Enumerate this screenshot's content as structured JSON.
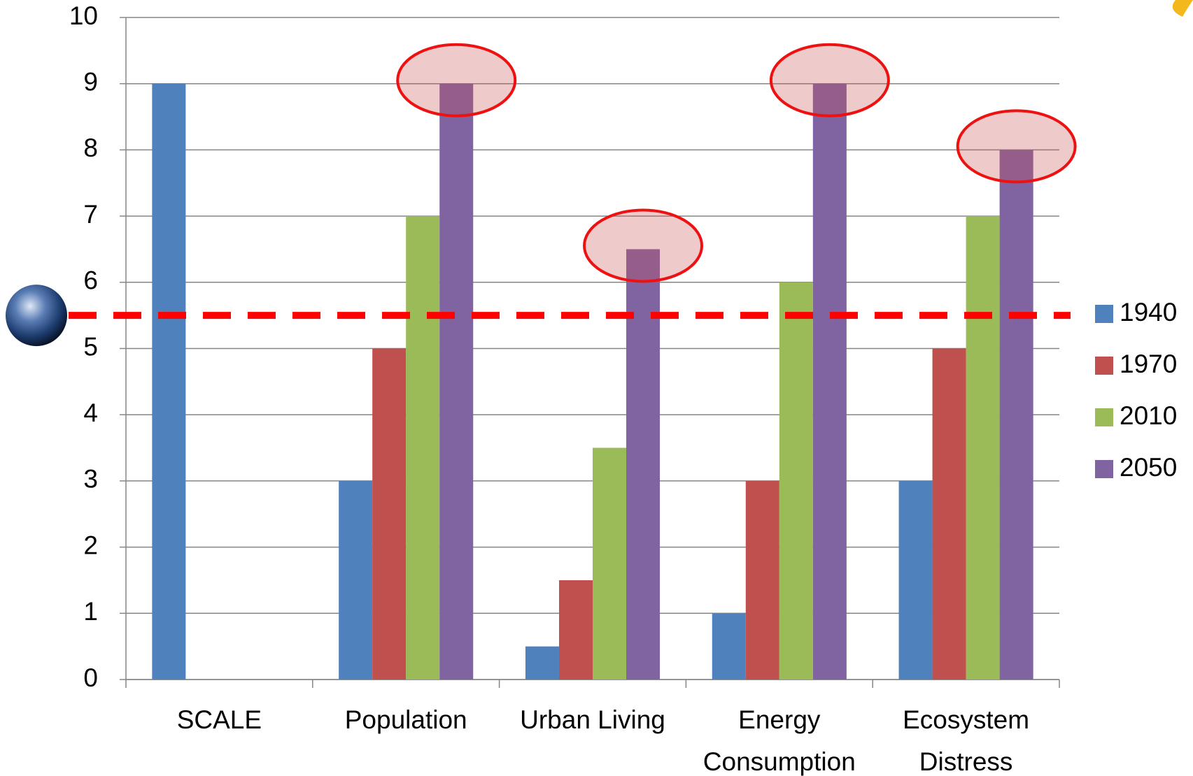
{
  "chart_data": {
    "type": "bar",
    "categories": [
      "SCALE",
      "Population",
      "Urban Living",
      "Energy\nConsumption",
      "Ecosystem\nDistress"
    ],
    "series": [
      {
        "name": "1940",
        "color": "#4f81bd",
        "values": [
          9,
          3,
          0.5,
          1,
          3
        ]
      },
      {
        "name": "1970",
        "color": "#c0504d",
        "values": [
          null,
          5,
          1.5,
          3,
          5
        ]
      },
      {
        "name": "2010",
        "color": "#9bbb59",
        "values": [
          null,
          7,
          3.5,
          6,
          7
        ]
      },
      {
        "name": "2050",
        "color": "#8064a2",
        "values": [
          null,
          9,
          6.5,
          9,
          8
        ]
      }
    ],
    "ylim": [
      0,
      10
    ],
    "yticks": [
      0,
      1,
      2,
      3,
      4,
      5,
      6,
      7,
      8,
      9,
      10
    ],
    "grid": true,
    "legend": "right",
    "reference_line": 5.5,
    "reference_color": "#ff0000"
  }
}
